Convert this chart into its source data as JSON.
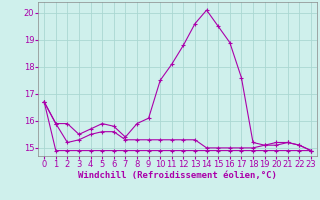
{
  "xlabel": "Windchill (Refroidissement éolien,°C)",
  "x": [
    0,
    1,
    2,
    3,
    4,
    5,
    6,
    7,
    8,
    9,
    10,
    11,
    12,
    13,
    14,
    15,
    16,
    17,
    18,
    19,
    20,
    21,
    22,
    23
  ],
  "line1": [
    16.7,
    15.9,
    15.9,
    15.5,
    15.7,
    15.9,
    15.8,
    15.4,
    15.9,
    16.1,
    17.5,
    18.1,
    18.8,
    19.6,
    20.1,
    19.5,
    18.9,
    17.6,
    15.2,
    15.1,
    15.2,
    15.2,
    15.1,
    14.9
  ],
  "line2": [
    16.7,
    15.9,
    15.2,
    15.3,
    15.5,
    15.6,
    15.6,
    15.3,
    15.3,
    15.3,
    15.3,
    15.3,
    15.3,
    15.3,
    15.0,
    15.0,
    15.0,
    15.0,
    15.0,
    15.1,
    15.1,
    15.2,
    15.1,
    14.9
  ],
  "line3": [
    16.7,
    14.9,
    14.9,
    14.9,
    14.9,
    14.9,
    14.9,
    14.9,
    14.9,
    14.9,
    14.9,
    14.9,
    14.9,
    14.9,
    14.9,
    14.9,
    14.9,
    14.9,
    14.9,
    14.9,
    14.9,
    14.9,
    14.9,
    14.9
  ],
  "ylim": [
    14.7,
    20.4
  ],
  "yticks": [
    15,
    16,
    17,
    18,
    19,
    20
  ],
  "bg_color": "#cff0ec",
  "grid_color": "#aad8d2",
  "line_color": "#aa00aa",
  "line_width": 0.8,
  "marker": "+",
  "marker_size": 3,
  "tick_fontsize": 6,
  "xlabel_fontsize": 6.5
}
